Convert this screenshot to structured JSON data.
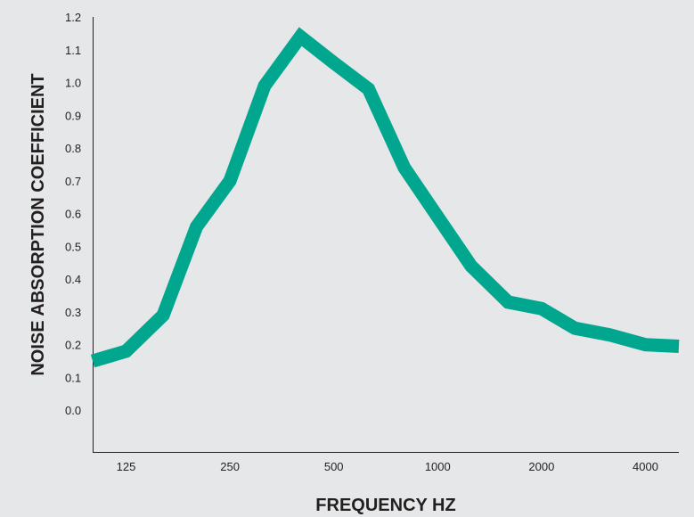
{
  "chart_data": {
    "type": "line",
    "title": "",
    "xlabel": "FREQUENCY HZ",
    "ylabel": "NOISE ABSORPTION COEFFICIENT",
    "x_tick_labels": [
      "125",
      "250",
      "500",
      "1000",
      "2000",
      "4000"
    ],
    "y_tick_labels": [
      "0.0",
      "0.1",
      "0.2",
      "0.3",
      "0.4",
      "0.5",
      "0.6",
      "0.7",
      "0.8",
      "0.9",
      "1.0",
      "1.1",
      "1.2"
    ],
    "ylim": [
      -0.1,
      1.2
    ],
    "grid": false,
    "x_scale": "log2",
    "series": [
      {
        "color": "#00a78e",
        "x": [
          100,
          125,
          160,
          200,
          250,
          315,
          400,
          500,
          630,
          800,
          1000,
          1250,
          1600,
          2000,
          2500,
          3150,
          4000,
          5000
        ],
        "y": [
          0.15,
          0.18,
          0.29,
          0.56,
          0.7,
          0.99,
          1.14,
          1.06,
          0.98,
          0.74,
          0.59,
          0.44,
          0.33,
          0.31,
          0.25,
          0.23,
          0.2,
          0.195
        ]
      }
    ]
  }
}
